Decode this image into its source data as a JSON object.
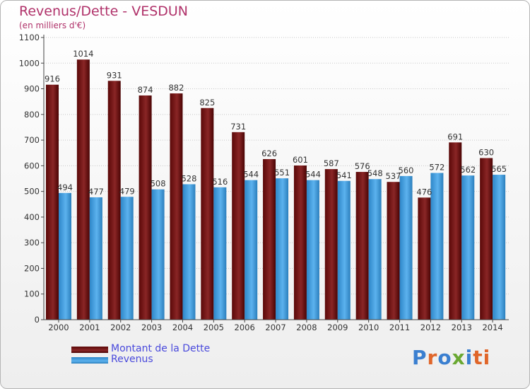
{
  "header": {
    "title": "Revenus/Dette - VESDUN",
    "subtitle": "(en milliers d'€)"
  },
  "legend": {
    "items": [
      {
        "label": "Montant de la Dette",
        "color": "#7a1414"
      },
      {
        "label": "Revenus",
        "color": "#3d9ee0"
      }
    ]
  },
  "logo": {
    "text": "Proxiti",
    "letter_colors": [
      "#3a7fd0",
      "#e0662a",
      "#3a7fd0",
      "#6aa832",
      "#3a7fd0",
      "#e0662a",
      "#e0662a"
    ]
  },
  "chart_data": {
    "type": "bar",
    "categories": [
      "2000",
      "2001",
      "2002",
      "2003",
      "2004",
      "2005",
      "2006",
      "2007",
      "2008",
      "2009",
      "2010",
      "2011",
      "2012",
      "2013",
      "2014"
    ],
    "series": [
      {
        "name": "Montant de la Dette",
        "color": "#7a1414",
        "values": [
          916,
          1014,
          931,
          874,
          882,
          825,
          731,
          626,
          601,
          587,
          576,
          537,
          476,
          691,
          630
        ]
      },
      {
        "name": "Revenus",
        "color": "#3d9ee0",
        "values": [
          494,
          477,
          479,
          508,
          528,
          516,
          544,
          551,
          544,
          541,
          548,
          560,
          572,
          562,
          565
        ]
      }
    ],
    "ylim": [
      0,
      1100
    ],
    "ytick_step": 100,
    "grid": true,
    "legend_position": "bottom-left"
  }
}
